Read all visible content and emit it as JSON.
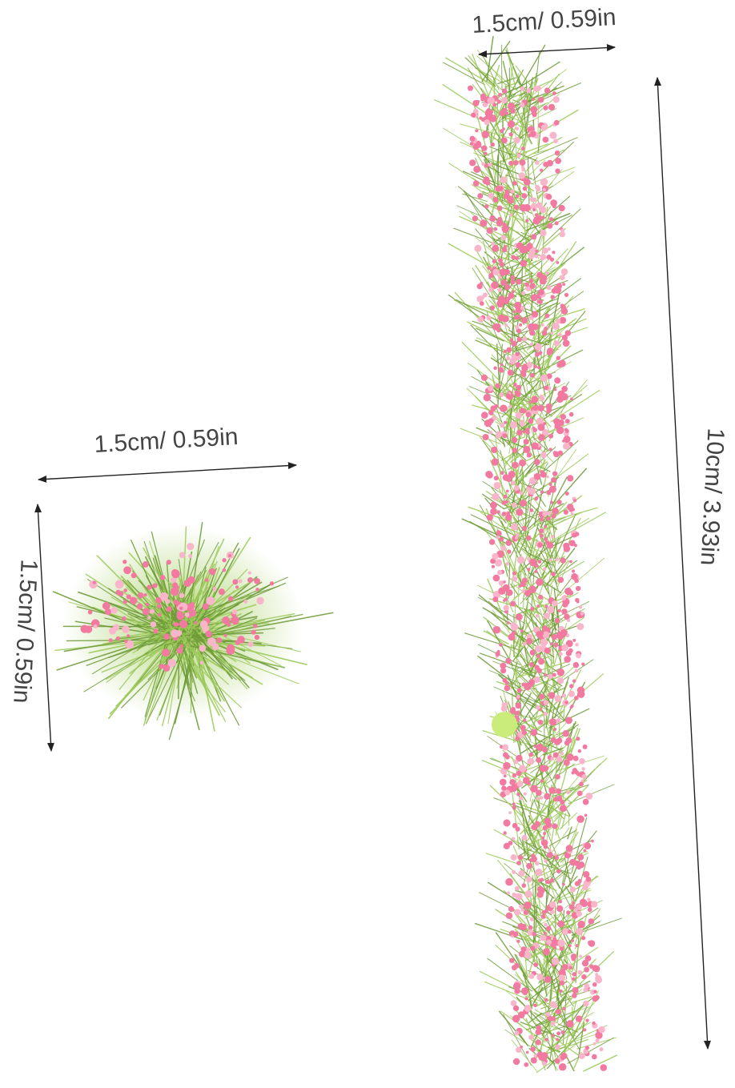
{
  "product": {
    "small_tuft": {
      "width_label": "1.5cm/ 0.59in",
      "height_label": "1.5cm/ 0.59in"
    },
    "long_strip": {
      "width_label": "1.5cm/ 0.59in",
      "length_label": "10cm/ 3.93in"
    }
  },
  "colors": {
    "grass_light": "#9cc95a",
    "grass_dark": "#6e9a38",
    "flower_pink": "#f27aa0",
    "flower_light": "#f9b6cb",
    "label_text": "#444444",
    "arrow": "#222222"
  }
}
